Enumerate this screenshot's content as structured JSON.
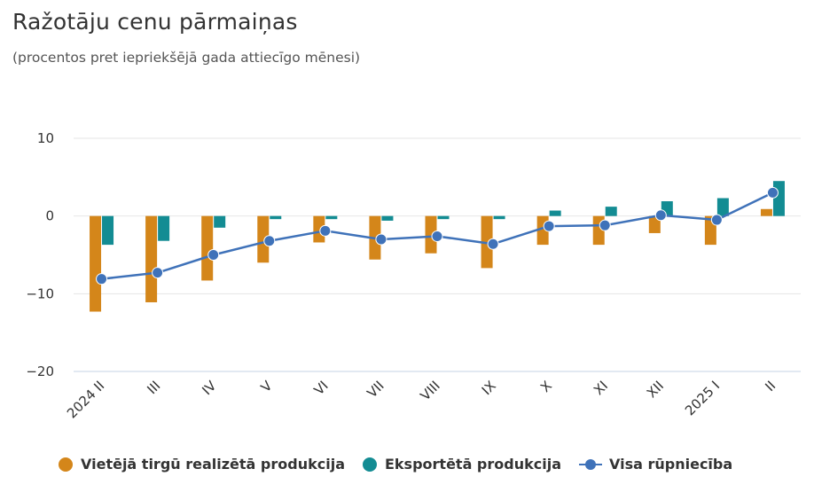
{
  "title": "Ražotāju cenu pārmaiņas",
  "subtitle": "(procentos pret iepriekšējā gada attiecīgo mēnesi)",
  "colors": {
    "domestic": "#d4861a",
    "export": "#138c93",
    "total": "#3f72b9",
    "grid": "#e6e6e6",
    "axis": "#c6d3e6"
  },
  "chart_data": {
    "type": "bar+line",
    "title": "Ražotāju cenu pārmaiņas",
    "subtitle": "(procentos pret iepriekšējā gada attiecīgo mēnesi)",
    "categories": [
      "2024 II",
      "III",
      "IV",
      "V",
      "VI",
      "VII",
      "VIII",
      "IX",
      "X",
      "XI",
      "XII",
      "2025 I",
      "II"
    ],
    "y_ticks": [
      "10",
      "0",
      "−10",
      "−20"
    ],
    "y_tick_values": [
      10,
      0,
      -10,
      -20
    ],
    "ylim": [
      -20,
      10
    ],
    "grid": true,
    "legend_position": "bottom",
    "series": [
      {
        "name": "Vietējā tirgū realizētā produkcija",
        "type": "bar",
        "color_key": "domestic",
        "values": [
          -12.3,
          -11.1,
          -8.3,
          -6.0,
          -3.4,
          -5.6,
          -4.8,
          -6.7,
          -3.7,
          -3.7,
          -2.2,
          -3.7,
          0.9
        ]
      },
      {
        "name": "Eksportētā produkcija",
        "type": "bar",
        "color_key": "export",
        "values": [
          -3.7,
          -3.2,
          -1.5,
          -0.4,
          -0.4,
          -0.6,
          -0.4,
          -0.4,
          0.7,
          1.2,
          1.9,
          2.3,
          4.5
        ]
      },
      {
        "name": "Visa rūpniecība",
        "type": "line",
        "color_key": "total",
        "values": [
          -8.1,
          -7.3,
          -5.0,
          -3.2,
          -1.9,
          -3.0,
          -2.6,
          -3.6,
          -1.3,
          -1.2,
          0.1,
          -0.5,
          3.0
        ]
      }
    ]
  },
  "legend": [
    {
      "label": "Vietējā tirgū realizētā produkcija",
      "marker": "dot",
      "color_key": "domestic"
    },
    {
      "label": "Eksportētā produkcija",
      "marker": "dot",
      "color_key": "export"
    },
    {
      "label": "Visa rūpniecība",
      "marker": "line",
      "color_key": "total"
    }
  ]
}
